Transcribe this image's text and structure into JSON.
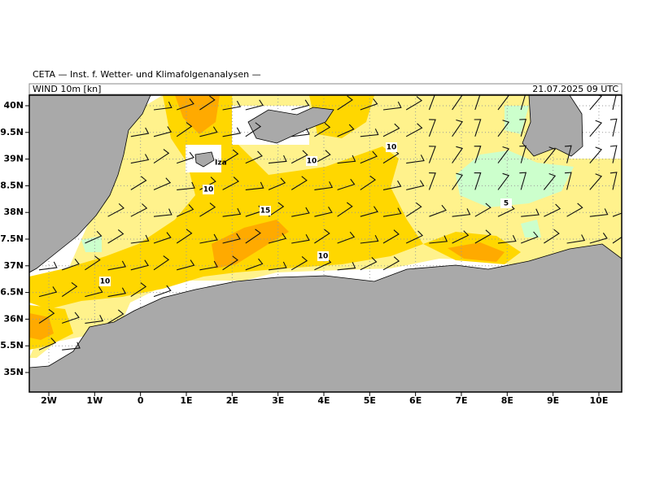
{
  "header": {
    "title": "CETA — Inst. f. Wetter- und Klimafolgenanalysen —",
    "field": "WIND 10m [kn]",
    "valid": "21.07.2025 09 UTC"
  },
  "axes": {
    "lon_labels": [
      "2W",
      "1W",
      "0",
      "1E",
      "2E",
      "3E",
      "4E",
      "5E",
      "6E",
      "7E",
      "8E",
      "9E",
      "10E"
    ],
    "lat_labels": [
      "40N",
      "39.5N",
      "39N",
      "38.5N",
      "38N",
      "37.5N",
      "37N",
      "36.5N",
      "36N",
      "35.5N",
      "35N"
    ]
  },
  "map_labels": {
    "place": "Iza",
    "contours": [
      "10",
      "10",
      "10",
      "10",
      "10",
      "15",
      "5"
    ]
  }
}
